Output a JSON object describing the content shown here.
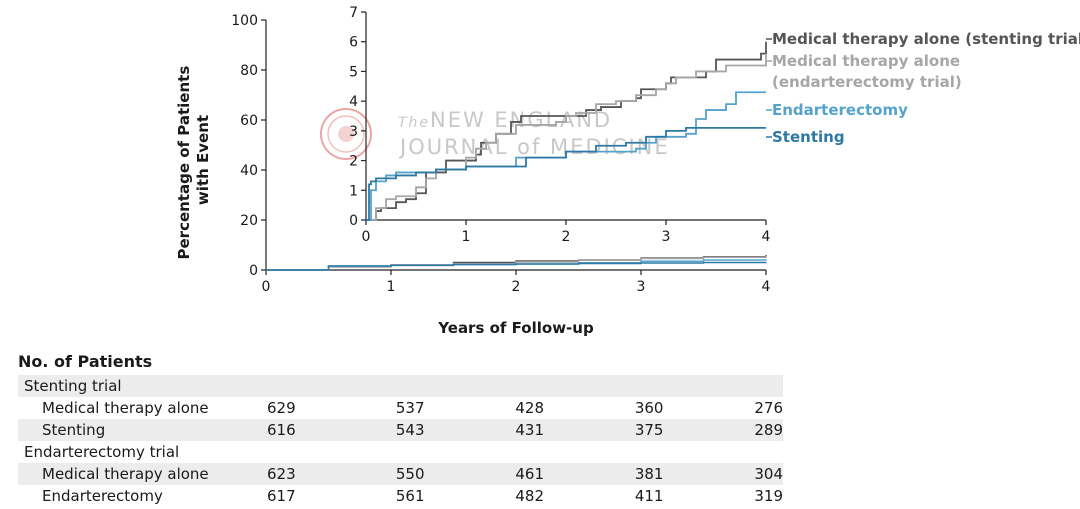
{
  "chart_data": [
    {
      "type": "line",
      "name": "main",
      "xlabel": "Years of Follow-up",
      "ylabel": "Percentage of Patients with Event",
      "xlim": [
        0,
        4
      ],
      "ylim": [
        0,
        100
      ],
      "xticks": [
        "0",
        "1",
        "2",
        "3",
        "4"
      ],
      "yticks": [
        "0",
        "20",
        "40",
        "60",
        "80",
        "100"
      ],
      "series": [
        {
          "name": "Medical therapy alone (stenting trial)",
          "color": "#555555",
          "x": [
            0,
            0.5,
            1,
            1.5,
            2,
            2.5,
            3,
            3.5,
            4
          ],
          "y": [
            0,
            1.5,
            2,
            3,
            3.6,
            4,
            4.8,
            5.3,
            6
          ]
        },
        {
          "name": "Medical therapy alone (endarterectomy trial)",
          "color": "#a6a6a6",
          "x": [
            0,
            0.5,
            1,
            1.5,
            2,
            2.5,
            3,
            3.5,
            4
          ],
          "y": [
            0,
            1.2,
            1.8,
            2.5,
            3.2,
            3.9,
            4.6,
            5.1,
            5.6
          ]
        },
        {
          "name": "Endarterectomy",
          "color": "#55a3cc",
          "x": [
            0,
            0.5,
            1,
            1.5,
            2,
            2.5,
            3,
            3.5,
            4
          ],
          "y": [
            0,
            1.6,
            1.9,
            2.2,
            2.4,
            2.9,
            3.5,
            4,
            4.3
          ]
        },
        {
          "name": "Stenting",
          "color": "#2e78a4",
          "x": [
            0,
            0.5,
            1,
            1.5,
            2,
            2.5,
            3,
            3.5,
            4
          ],
          "y": [
            0,
            1.6,
            1.9,
            2.2,
            2.4,
            2.6,
            2.8,
            3,
            3.1
          ]
        }
      ]
    },
    {
      "type": "line",
      "name": "inset",
      "xlim": [
        0,
        4
      ],
      "ylim": [
        0,
        7
      ],
      "xticks": [
        "0",
        "1",
        "2",
        "3",
        "4"
      ],
      "yticks": [
        "0",
        "1",
        "2",
        "3",
        "4",
        "5",
        "6",
        "7"
      ],
      "series": [
        {
          "name": "Medical therapy alone (stenting trial)",
          "color": "#555555",
          "x": [
            0,
            0.02,
            0.1,
            0.15,
            0.3,
            0.4,
            0.5,
            0.6,
            0.8,
            0.9,
            1.1,
            1.15,
            1.3,
            1.45,
            1.55,
            1.75,
            1.8,
            2.2,
            2.3,
            2.35,
            2.5,
            2.55,
            2.7,
            2.75,
            3.0,
            3.05,
            3.3,
            3.4,
            3.5,
            3.95,
            4.0,
            4.0
          ],
          "y": [
            0,
            0,
            0.3,
            0.4,
            0.6,
            0.7,
            0.9,
            1.6,
            2.0,
            2.0,
            2.2,
            2.6,
            2.9,
            3.3,
            3.5,
            3.5,
            3.5,
            3.7,
            3.7,
            3.8,
            3.8,
            4.0,
            4.1,
            4.4,
            4.6,
            4.8,
            4.8,
            5.0,
            5.4,
            5.6,
            5.7,
            6.0
          ]
        },
        {
          "name": "Medical therapy alone (endarterectomy trial)",
          "color": "#a6a6a6",
          "x": [
            0,
            0.03,
            0.1,
            0.2,
            0.3,
            0.5,
            0.6,
            0.7,
            1.0,
            1.1,
            1.2,
            1.3,
            1.5,
            1.7,
            1.9,
            2.0,
            2.1,
            2.3,
            2.5,
            2.7,
            2.9,
            3.0,
            3.1,
            3.3,
            3.5,
            3.6,
            3.8,
            4.0
          ],
          "y": [
            0,
            0,
            0.4,
            0.7,
            0.8,
            1.1,
            1.4,
            1.7,
            2.1,
            2.4,
            2.6,
            2.9,
            3.2,
            3.2,
            3.3,
            3.5,
            3.6,
            3.9,
            4.0,
            4.2,
            4.4,
            4.6,
            4.8,
            5.0,
            5.0,
            5.2,
            5.2,
            5.6
          ]
        },
        {
          "name": "Endarterectomy",
          "color": "#55a3cc",
          "x": [
            0,
            0.02,
            0.05,
            0.1,
            0.2,
            0.3,
            0.5,
            0.7,
            1.0,
            1.5,
            2.0,
            2.5,
            2.7,
            2.8,
            2.9,
            3.2,
            3.3,
            3.4,
            3.6,
            3.7,
            4.0
          ],
          "y": [
            0,
            0,
            1.0,
            1.3,
            1.5,
            1.6,
            1.6,
            1.7,
            1.8,
            2.1,
            2.3,
            2.3,
            2.4,
            2.6,
            2.8,
            2.9,
            3.4,
            3.7,
            3.9,
            4.3,
            4.3
          ]
        },
        {
          "name": "Stenting",
          "color": "#2e78a4",
          "x": [
            0,
            0.01,
            0.03,
            0.05,
            0.1,
            0.3,
            0.5,
            0.7,
            1.0,
            1.6,
            2.0,
            2.3,
            2.6,
            2.8,
            3.0,
            3.2,
            3.4,
            3.6,
            4.0
          ],
          "y": [
            0,
            0,
            1.2,
            1.3,
            1.4,
            1.5,
            1.6,
            1.7,
            1.8,
            2.1,
            2.3,
            2.5,
            2.6,
            2.8,
            3.0,
            3.1,
            3.1,
            3.1,
            3.1
          ]
        }
      ]
    }
  ],
  "legend": [
    {
      "lines": [
        "Medical therapy alone (stenting trial)"
      ],
      "color": "#555555"
    },
    {
      "lines": [
        "Medical therapy alone",
        "(endarterectomy trial)"
      ],
      "color": "#a6a6a6"
    },
    {
      "lines": [
        "Endarterectomy"
      ],
      "color": "#55a3cc"
    },
    {
      "lines": [
        "Stenting"
      ],
      "color": "#2e78a4"
    }
  ],
  "watermark": {
    "the": "The",
    "line1": "NEW ENGLAND",
    "line2": "JOURNAL of MEDICINE"
  },
  "ylabel_lines": [
    "Percentage of Patients",
    "with Event"
  ],
  "patients_table": {
    "title": "No. of Patients",
    "groups": [
      {
        "label": "Stenting trial",
        "rows": [
          {
            "label": "Medical therapy alone",
            "values": [
              "629",
              "537",
              "428",
              "360",
              "276"
            ]
          },
          {
            "label": "Stenting",
            "values": [
              "616",
              "543",
              "431",
              "375",
              "289"
            ]
          }
        ]
      },
      {
        "label": "Endarterectomy trial",
        "rows": [
          {
            "label": "Medical therapy alone",
            "values": [
              "623",
              "550",
              "461",
              "381",
              "304"
            ]
          },
          {
            "label": "Endarterectomy",
            "values": [
              "617",
              "561",
              "482",
              "411",
              "319"
            ]
          }
        ]
      }
    ]
  }
}
